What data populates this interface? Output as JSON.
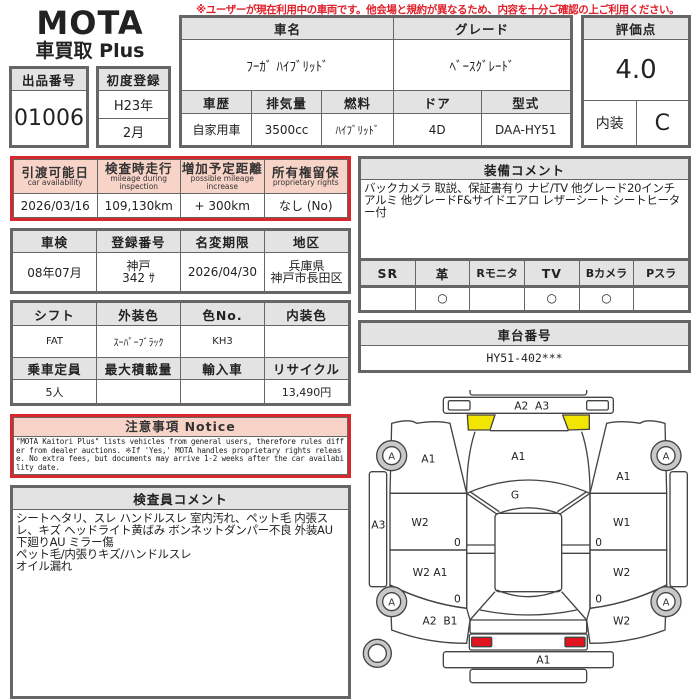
{
  "logo": {
    "brand": "MOTA",
    "sub": "車買取 Plus"
  },
  "warning": "※ユーザーが現在利用中の車両です。他会場と規約が異なるため、内容を十分ご確認の上ご利用ください。",
  "listing": {
    "number_label": "出品番号",
    "number": "01006",
    "first_reg_label": "初度登録",
    "first_reg_year": "H23年",
    "first_reg_month": "2月"
  },
  "vehicle": {
    "name_label": "車名",
    "name": "ﾌｰｶﾞ ﾊｲﾌﾞﾘｯﾄﾞ",
    "grade_label": "グレード",
    "grade": "ﾍﾞｰｽｸﾞﾚｰﾄﾞ",
    "history_label": "車歴",
    "history": "自家用車",
    "displacement_label": "排気量",
    "displacement": "3500cc",
    "fuel_label": "燃料",
    "fuel": "ﾊｲﾌﾞﾘｯﾄﾞ",
    "doors_label": "ドア",
    "doors": "4D",
    "model_label": "型式",
    "model": "DAA-HY51"
  },
  "score": {
    "label": "評価点",
    "value": "4.0",
    "interior_label": "内装",
    "interior": "C"
  },
  "availability": {
    "headers": [
      {
        "ja": "引渡可能日",
        "en": "car availability"
      },
      {
        "ja": "検査時走行",
        "en": "mileage during inspection"
      },
      {
        "ja": "増加予定距離",
        "en": "possible mileage increase"
      },
      {
        "ja": "所有権留保",
        "en": "proprietary rights"
      }
    ],
    "values": [
      "2026/03/16",
      "109,130km",
      "+ 300km",
      "なし (No)"
    ]
  },
  "registration": {
    "headers": [
      "車検",
      "登録番号",
      "名変期限",
      "地区"
    ],
    "shaken": "08年07月",
    "plate_1": "神戸",
    "plate_2": "342 ｻ",
    "deadline": "2026/04/30",
    "area_1": "兵庫県",
    "area_2": "神戸市長田区"
  },
  "specs": {
    "headers1": [
      "シフト",
      "外装色",
      "色No.",
      "内装色"
    ],
    "values1": [
      "FAT",
      "ｽｰﾊﾟｰﾌﾞﾗｯｸ",
      "KH3",
      ""
    ],
    "headers2": [
      "乗車定員",
      "最大積載量",
      "輸入車",
      "リサイクル"
    ],
    "values2": [
      "5人",
      "",
      "",
      "13,490円"
    ]
  },
  "equipment": {
    "label": "装備コメント",
    "text": "バックカメラ 取説、保証書有り ナビ/TV 他グレード20インチアルミ 他グレードF&サイドエアロ レザーシート シートヒーター付"
  },
  "options": {
    "headers": [
      "SR",
      "革",
      "Rモニタ",
      "TV",
      "Bカメラ",
      "Pスラ"
    ],
    "values": [
      "",
      "○",
      "",
      "○",
      "○",
      ""
    ]
  },
  "chassis": {
    "label": "車台番号",
    "value": "HY51-402***"
  },
  "notice": {
    "label": "注意事項 Notice",
    "text": "\"MOTA Kaitori Plus\" lists vehicles from general users, therefore rules differ from dealer auctions. ※If 'Yes,' MOTA handles proprietary rights release. No extra fees, but documents may arrive 1-2 weeks after the car availability date."
  },
  "inspector": {
    "label": "検査員コメント",
    "lines": [
      "シートヘタリ、スレ ハンドルスレ 室内汚れ、ペット毛 内張スレ、キズ ヘッドライト黄ばみ ボンネットダンパー不良 外装AU 下廻りAU ミラー傷",
      "ペット毛/内張りキズ/ハンドルスレ",
      "オイル漏れ"
    ]
  },
  "diagram": {
    "front_bumper": "A2  A3",
    "hood": "A1",
    "left_front_fender": "A1",
    "right_front_fender": "A1",
    "roof": "G",
    "left_front_door": "W2",
    "right_front_door": "W1",
    "left_rear_door": "W2 A1",
    "right_rear_door": "W2",
    "left_rear_fender": "A2  B1",
    "right_rear_fender": "W2",
    "left_sill": "A3",
    "rear_bumper": "A1",
    "wheel": "A",
    "zero": "0",
    "colors": {
      "headlight": "#f2e600",
      "taillight": "#e0141e",
      "wheel": "#c8c8c8"
    }
  }
}
